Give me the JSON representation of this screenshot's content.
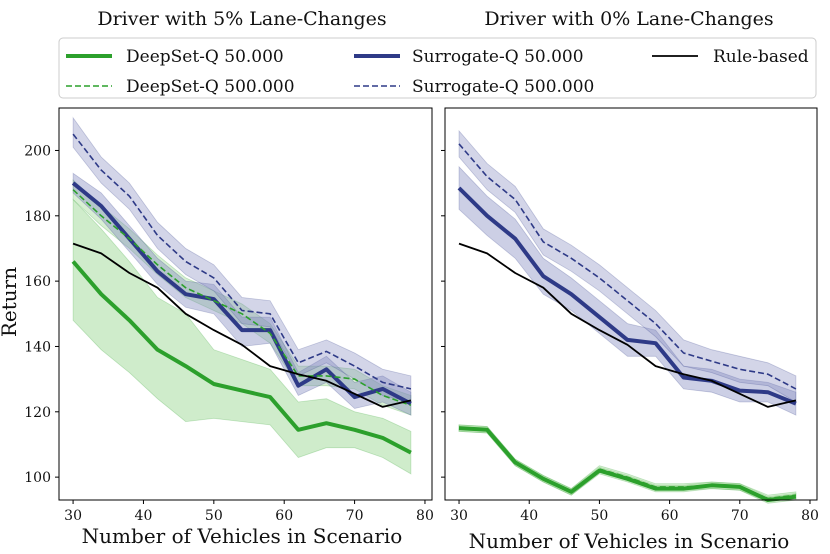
{
  "chart_data": [
    {
      "type": "line",
      "title": "Driver with 5% Lane-Changes",
      "xlabel": "Number of Vehicles in Scenario",
      "ylabel": "Return",
      "xlim": [
        28,
        81
      ],
      "ylim": [
        93,
        213
      ],
      "xticks": [
        30,
        40,
        50,
        60,
        70,
        80
      ],
      "yticks": [
        100,
        120,
        140,
        160,
        180,
        200
      ],
      "x": [
        30,
        34,
        38,
        42,
        46,
        50,
        54,
        58,
        62,
        66,
        70,
        74,
        78
      ],
      "series": [
        {
          "name": "DeepSet-Q 50.000",
          "values": [
            166,
            156,
            148,
            139,
            134,
            128.5,
            126.5,
            124.5,
            114.5,
            116.5,
            114.5,
            112,
            107.5
          ],
          "lower": [
            148,
            139,
            132,
            124,
            117,
            118,
            117,
            116,
            106,
            109,
            109,
            106,
            101
          ],
          "upper": [
            185,
            176,
            166,
            155,
            150,
            139,
            136,
            133,
            123,
            124,
            120,
            118,
            114
          ]
        },
        {
          "name": "DeepSet-Q 500.000",
          "values": [
            188,
            180,
            173,
            165,
            158,
            154,
            150,
            144,
            131,
            131,
            130,
            125,
            122
          ],
          "lower": [
            185,
            177,
            170,
            162,
            155,
            151,
            147,
            141,
            128,
            128,
            127,
            122,
            119
          ],
          "upper": [
            191,
            183,
            176,
            168,
            161,
            157,
            153,
            147,
            134,
            134,
            133,
            128,
            125
          ]
        },
        {
          "name": "Surrogate-Q 50.000",
          "values": [
            190,
            183,
            173,
            163,
            156,
            154.5,
            145,
            145,
            128,
            133,
            124.5,
            127,
            122.5
          ],
          "lower": [
            187,
            179,
            169,
            159,
            152,
            150,
            140,
            141,
            125,
            129,
            121,
            123,
            119
          ],
          "upper": [
            193,
            187,
            177,
            167,
            160,
            159,
            149,
            149,
            132,
            137,
            129,
            131,
            126
          ]
        },
        {
          "name": "Surrogate-Q 500.000",
          "values": [
            205,
            194,
            186,
            174,
            166,
            161,
            151,
            150,
            135,
            138.5,
            134,
            129,
            127
          ],
          "lower": [
            201,
            190,
            182,
            170,
            162,
            157,
            147,
            146,
            131,
            135,
            130,
            125,
            123
          ],
          "upper": [
            210,
            198,
            190,
            178,
            170,
            165,
            155,
            154,
            139,
            142,
            138,
            133,
            131
          ]
        },
        {
          "name": "Rule-based",
          "values": [
            171.5,
            168.5,
            162.5,
            158,
            150,
            145,
            140.5,
            134,
            131.5,
            129.5,
            125.5,
            121.5,
            123.5
          ]
        }
      ]
    },
    {
      "type": "line",
      "title": "Driver with 0% Lane-Changes",
      "xlabel": "Number of Vehicles in Scenario",
      "ylabel": "",
      "xlim": [
        28,
        81
      ],
      "ylim": [
        93,
        213
      ],
      "xticks": [
        30,
        40,
        50,
        60,
        70,
        80
      ],
      "yticks": [
        100,
        120,
        140,
        160,
        180,
        200
      ],
      "x": [
        30,
        34,
        38,
        42,
        46,
        50,
        54,
        58,
        62,
        66,
        70,
        74,
        78
      ],
      "series": [
        {
          "name": "DeepSet-Q 50.000",
          "values": [
            115,
            114.5,
            104.5,
            99.5,
            95.5,
            102,
            99.5,
            96.5,
            96.5,
            97.5,
            97,
            93,
            94
          ],
          "lower": [
            114,
            113.5,
            103.5,
            98.5,
            94.5,
            101,
            98.5,
            95.5,
            95.5,
            96.5,
            96,
            92,
            93
          ],
          "upper": [
            116,
            115.5,
            105.5,
            100.5,
            96.5,
            103,
            100.5,
            97.5,
            97.5,
            98.5,
            98,
            94,
            95
          ]
        },
        {
          "name": "DeepSet-Q 500.000",
          "values": [
            115,
            114.5,
            104.5,
            99.5,
            95.5,
            102.5,
            100,
            97,
            97,
            97.5,
            97,
            93.5,
            94.5
          ],
          "lower": [
            114,
            113.5,
            103.5,
            98.5,
            94.5,
            101.5,
            99,
            96,
            96,
            96.5,
            96,
            92.5,
            93.5
          ],
          "upper": [
            116,
            115.5,
            105.5,
            100.5,
            96.5,
            103.5,
            101,
            98,
            98,
            98.5,
            98,
            94.5,
            95.5
          ]
        },
        {
          "name": "Surrogate-Q 50.000",
          "values": [
            188.5,
            180,
            173,
            161.5,
            156,
            149,
            142,
            141,
            130.5,
            129.5,
            126.5,
            126,
            122.5
          ],
          "lower": [
            182,
            174,
            167,
            156,
            151,
            144,
            137,
            137,
            127,
            126,
            123,
            123,
            119
          ],
          "upper": [
            195,
            186,
            179,
            167,
            161,
            154,
            147,
            145,
            134,
            133,
            130,
            129,
            126
          ]
        },
        {
          "name": "Surrogate-Q 500.000",
          "values": [
            202,
            192,
            185,
            172,
            167,
            161,
            154,
            147,
            138,
            135.5,
            133,
            131.5,
            127
          ],
          "lower": [
            198,
            188,
            181,
            168,
            163,
            157,
            150,
            143,
            134,
            132,
            129,
            128,
            123
          ],
          "upper": [
            206,
            196,
            189,
            176,
            171,
            165,
            158,
            151,
            142,
            139,
            137,
            135,
            131
          ]
        },
        {
          "name": "Rule-based",
          "values": [
            171.5,
            168.5,
            162.5,
            158,
            150,
            145,
            140.5,
            134,
            131.5,
            129.5,
            125.5,
            121.5,
            123.5
          ]
        }
      ]
    }
  ],
  "legend": {
    "placement": "top-center",
    "entries": [
      {
        "name": "DeepSet-Q 50.000",
        "color": "#2ca02c",
        "style": "thick-solid"
      },
      {
        "name": "DeepSet-Q 500.000",
        "color": "#2ca02c",
        "style": "dashed"
      },
      {
        "name": "Surrogate-Q 50.000",
        "color": "#2e3a87",
        "style": "thick-solid"
      },
      {
        "name": "Surrogate-Q 500.000",
        "color": "#2e3a87",
        "style": "dashed"
      },
      {
        "name": "Rule-based",
        "color": "#000000",
        "style": "solid"
      }
    ]
  },
  "colors": {
    "deepset": "#2ca02c",
    "deepset_band": "#a8dca0",
    "surrogate": "#2e3a87",
    "surrogate_band": "#8088bd",
    "rule": "#000000"
  }
}
